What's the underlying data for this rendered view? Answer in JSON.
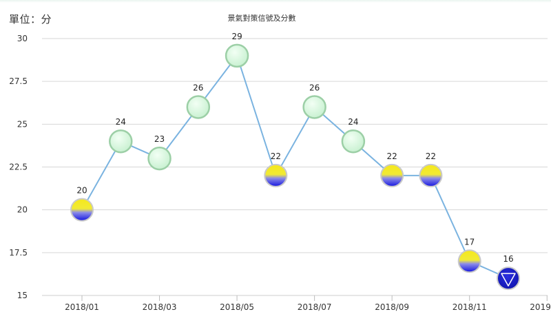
{
  "unit_label": "單位：分",
  "chart_data": {
    "type": "line",
    "title": "景氣對策信號及分數",
    "ylim": [
      15,
      30
    ],
    "y_ticks": [
      "15",
      "17.5",
      "20",
      "22.5",
      "25",
      "27.5",
      "30"
    ],
    "x_ticks": [
      "2018/01",
      "2018/03",
      "2018/05",
      "2018/07",
      "2018/09",
      "2018/11",
      "2019/01"
    ],
    "grid": true,
    "series": [
      {
        "x": [
          "2018/01",
          "2018/02",
          "2018/03",
          "2018/04",
          "2018/05",
          "2018/06",
          "2018/07",
          "2018/08",
          "2018/09",
          "2018/10",
          "2018/11",
          "2018/12"
        ],
        "values": [
          20,
          24,
          23,
          26,
          29,
          22,
          26,
          24,
          22,
          22,
          17,
          16
        ],
        "signals": [
          "yellow-blue",
          "green",
          "green",
          "green",
          "green",
          "yellow-blue",
          "green",
          "green",
          "yellow-blue",
          "yellow-blue",
          "yellow-blue",
          "blue"
        ]
      }
    ],
    "colors": {
      "line": "#7ab3e0",
      "green_fill": "#d8f7df",
      "green_stroke": "#9ccfa6",
      "yellow": "#f2e31a",
      "blue": "#1b1bd6",
      "dark_blue": "#1418b8"
    }
  }
}
